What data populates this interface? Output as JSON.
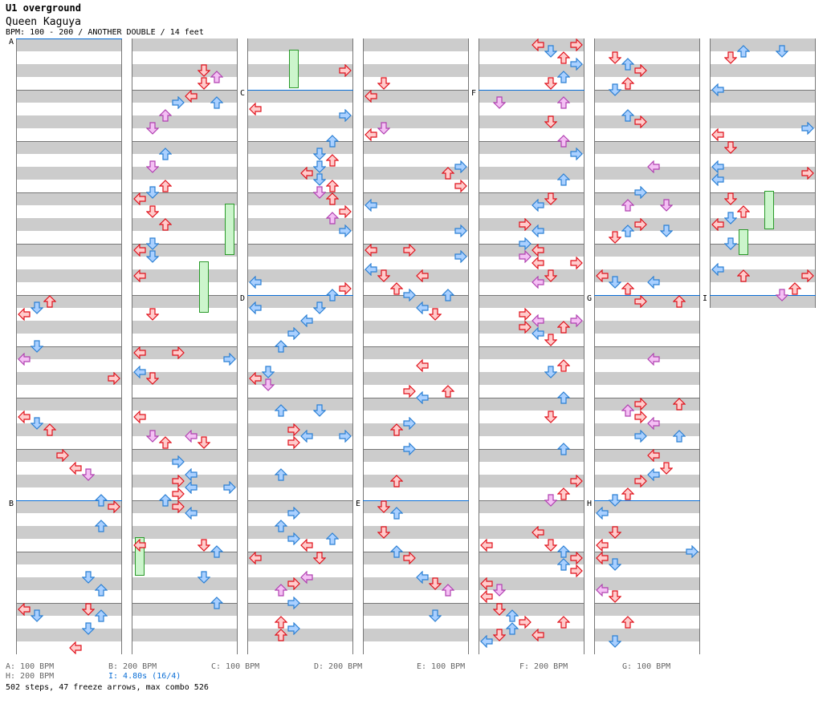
{
  "header": {
    "title": "U1 overground",
    "song": "Queen Kaguya",
    "info": "BPM: 100 - 200 / ANOTHER DOUBLE / 14 feet"
  },
  "sections": [
    {
      "label": "A",
      "column": 0,
      "measure": 0
    },
    {
      "label": "B",
      "column": 0,
      "measure": 9
    },
    {
      "label": "C",
      "column": 2,
      "measure": 1
    },
    {
      "label": "D",
      "column": 2,
      "measure": 5
    },
    {
      "label": "E",
      "column": 3,
      "measure": 9
    },
    {
      "label": "F",
      "column": 4,
      "measure": 1
    },
    {
      "label": "G",
      "column": 5,
      "measure": 5
    },
    {
      "label": "H",
      "column": 5,
      "measure": 9
    },
    {
      "label": "I",
      "column": 6,
      "measure": 5
    }
  ],
  "legend": [
    {
      "text": "A: 100 BPM"
    },
    {
      "text": "B: 200 BPM"
    },
    {
      "text": "C: 100 BPM"
    },
    {
      "text": "D: 200 BPM"
    },
    {
      "text": "E: 100 BPM"
    },
    {
      "text": "F: 200 BPM"
    },
    {
      "text": "G: 100 BPM"
    },
    {
      "text": "H: 200 BPM"
    },
    {
      "text": "I: 4.80s (16/4)"
    }
  ],
  "stats": "502 steps, 47 freeze arrows, max combo 526",
  "colors": {
    "quarter": "#e0101a",
    "eighth": "#2a7fd4",
    "sixteenth": "#b040b0",
    "freeze": "#2a9a2a",
    "section": "#0a6ed6"
  }
}
